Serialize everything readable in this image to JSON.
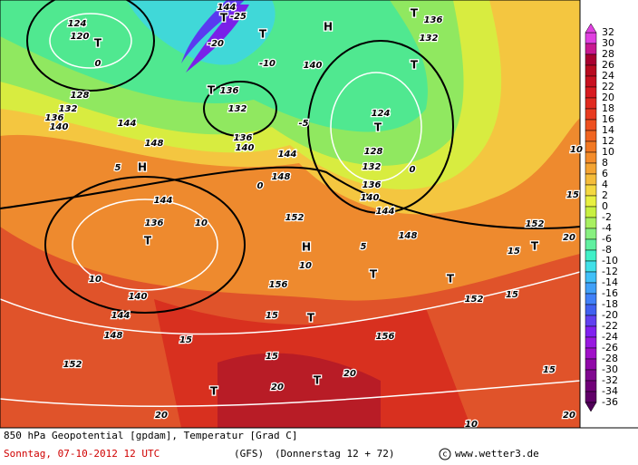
{
  "footer": {
    "title": "850 hPa Geopotential [gpdam], Temperatur [Grad C]",
    "date": "Sonntag, 07-10-2012  12 UTC",
    "model": "(GFS)",
    "forecast": "(Donnerstag 12 + 72)",
    "site": "www.wetter3.de"
  },
  "colorbar": {
    "labels": [
      32,
      30,
      28,
      26,
      24,
      22,
      20,
      18,
      16,
      14,
      12,
      10,
      8,
      6,
      4,
      2,
      0,
      -2,
      -4,
      -6,
      -8,
      -10,
      -12,
      -14,
      -16,
      -18,
      -20,
      -22,
      -24,
      -26,
      -28,
      -30,
      -32,
      -34,
      -36
    ]
  },
  "map_labels": [
    "T",
    "124",
    "120",
    "0",
    "128",
    "132",
    "136",
    "140",
    "144",
    "148",
    "H",
    "5",
    "144",
    "136",
    "T",
    "10",
    "10",
    "140",
    "144",
    "148",
    "152",
    "T",
    "20",
    "-20",
    "-25",
    "144",
    "T",
    "T",
    "H",
    "-10",
    "140",
    "T",
    "136",
    "132",
    "-5",
    "136",
    "140",
    "144",
    "148",
    "0",
    "152",
    "H",
    "10",
    "T",
    "156",
    "15",
    "T",
    "15",
    "15",
    "156",
    "20",
    "T",
    "20",
    "T",
    "136",
    "132",
    "T",
    "124",
    "T",
    "128",
    "132",
    "136",
    "140",
    "144",
    "148",
    "0",
    "5",
    "T",
    "152",
    "15",
    "15",
    "T",
    "20",
    "15",
    "152",
    "20",
    "15",
    "10",
    "10"
  ]
}
